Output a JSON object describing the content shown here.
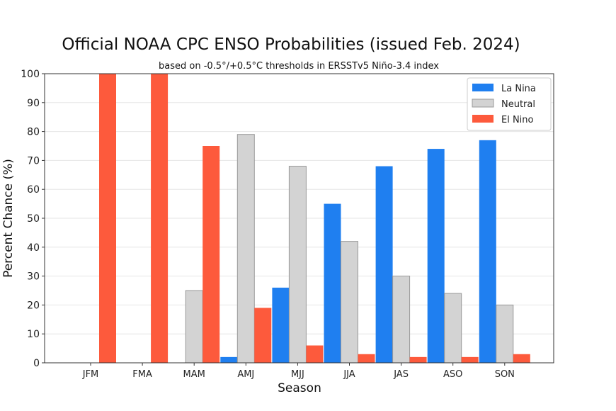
{
  "chart_data": {
    "type": "bar",
    "title": "Official NOAA CPC ENSO Probabilities (issued Feb. 2024)",
    "subtitle": "based on -0.5°/+0.5°C thresholds in ERSSTv5 Niño-3.4 index",
    "xlabel": "Season",
    "ylabel": "Percent Chance (%)",
    "ylim": [
      0,
      100
    ],
    "yticks": [
      0,
      10,
      20,
      30,
      40,
      50,
      60,
      70,
      80,
      90,
      100
    ],
    "grid": true,
    "legend_position": "top-right",
    "categories": [
      "JFM",
      "FMA",
      "MAM",
      "AMJ",
      "MJJ",
      "JJA",
      "JAS",
      "ASO",
      "SON"
    ],
    "series": [
      {
        "name": "La Nina",
        "color": "#1f7ff0",
        "values": [
          0,
          0,
          0,
          2,
          26,
          55,
          68,
          74,
          77
        ]
      },
      {
        "name": "Neutral",
        "color": "#d3d3d3",
        "values": [
          0,
          0,
          25,
          79,
          68,
          42,
          30,
          24,
          20
        ]
      },
      {
        "name": "El Nino",
        "color": "#fd5a3c",
        "values": [
          100,
          100,
          75,
          19,
          6,
          3,
          2,
          2,
          3
        ]
      }
    ]
  }
}
